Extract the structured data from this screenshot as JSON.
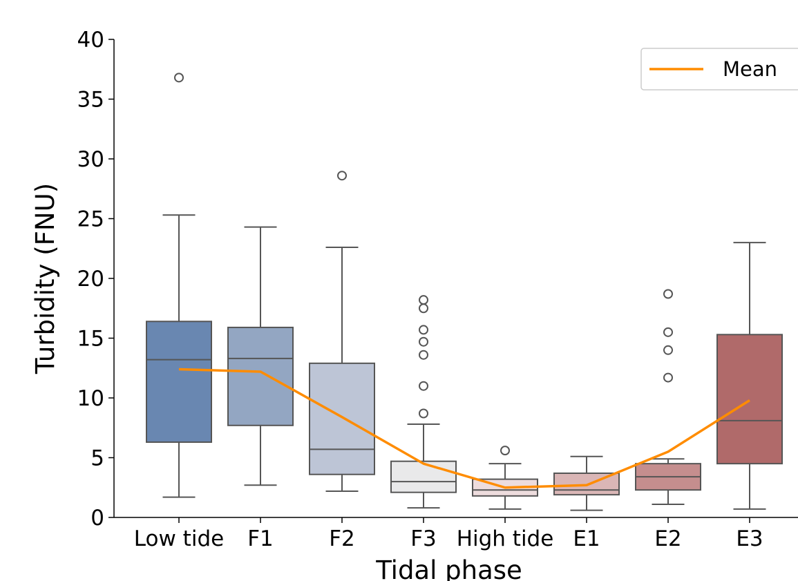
{
  "chart_data": {
    "type": "box",
    "xlabel": "Tidal phase",
    "ylabel": "Turbidity (FNU)",
    "ylim": [
      0,
      40
    ],
    "yticks": [
      0,
      5,
      10,
      15,
      20,
      25,
      30,
      35,
      40
    ],
    "grid": false,
    "legend": {
      "placement": "top-right",
      "entries": [
        "Mean"
      ]
    },
    "categories": [
      "Low tide",
      "F1",
      "F2",
      "F3",
      "High tide",
      "E1",
      "E2",
      "E3"
    ],
    "boxes": [
      {
        "category": "Low tide",
        "whisker_low": 1.7,
        "q1": 6.3,
        "median": 13.2,
        "q3": 16.4,
        "whisker_high": 25.3,
        "outliers": [
          36.8
        ],
        "color": "#6987b1"
      },
      {
        "category": "F1",
        "whisker_low": 2.7,
        "q1": 7.7,
        "median": 13.3,
        "q3": 15.9,
        "whisker_high": 24.3,
        "outliers": [],
        "color": "#93a6c2"
      },
      {
        "category": "F2",
        "whisker_low": 2.2,
        "q1": 3.6,
        "median": 5.7,
        "q3": 12.9,
        "whisker_high": 22.6,
        "outliers": [
          28.6
        ],
        "color": "#bdc5d6"
      },
      {
        "category": "F3",
        "whisker_low": 0.8,
        "q1": 2.1,
        "median": 3.0,
        "q3": 4.7,
        "whisker_high": 7.8,
        "outliers": [
          8.7,
          11.0,
          13.6,
          14.7,
          15.7,
          17.5,
          18.2
        ],
        "color": "#e9e9ea"
      },
      {
        "category": "High tide",
        "whisker_low": 0.7,
        "q1": 1.8,
        "median": 2.3,
        "q3": 3.2,
        "whisker_high": 4.5,
        "outliers": [
          5.6
        ],
        "color": "#eddcdd"
      },
      {
        "category": "E1",
        "whisker_low": 0.6,
        "q1": 1.9,
        "median": 2.3,
        "q3": 3.7,
        "whisker_high": 5.1,
        "outliers": [],
        "color": "#dab6b6"
      },
      {
        "category": "E2",
        "whisker_low": 1.1,
        "q1": 2.3,
        "median": 3.4,
        "q3": 4.5,
        "whisker_high": 4.9,
        "outliers": [
          11.7,
          14.0,
          15.5,
          18.7
        ],
        "color": "#c58e8e"
      },
      {
        "category": "E3",
        "whisker_low": 0.7,
        "q1": 4.5,
        "median": 8.1,
        "q3": 15.3,
        "whisker_high": 23.0,
        "outliers": [],
        "color": "#b06a6a"
      }
    ],
    "series": [
      {
        "name": "Mean",
        "color": "#ff8c00",
        "values": [
          12.4,
          12.2,
          8.4,
          4.5,
          2.5,
          2.7,
          5.5,
          9.8
        ]
      }
    ]
  }
}
